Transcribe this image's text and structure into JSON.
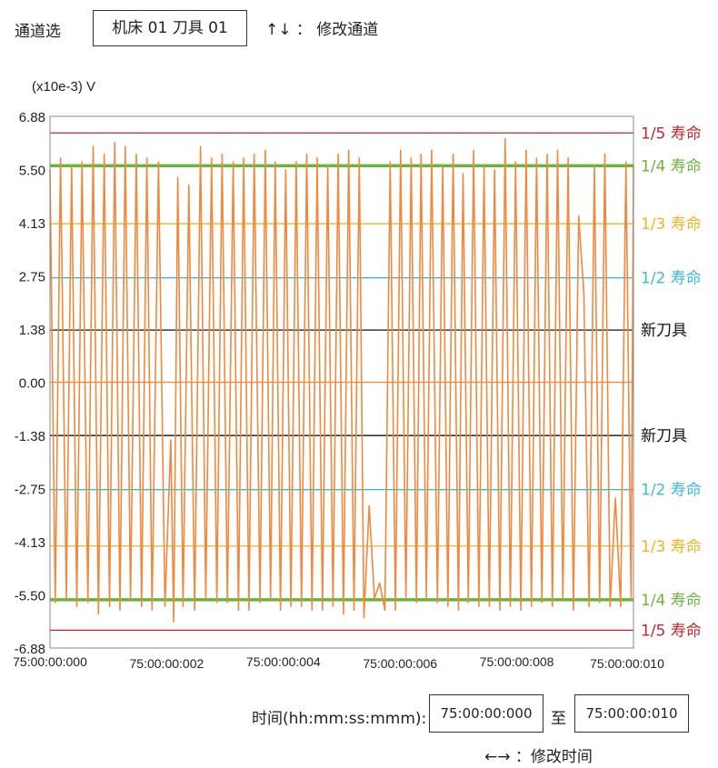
{
  "header": {
    "channel_label": "通道选",
    "channel_value": "机床 01 刀具 01",
    "channel_hint": "↑↓ ： 修改通道"
  },
  "colors": {
    "signal": "#f0883e",
    "fifth_life": "#c0282e",
    "quarter_life": "#6cb33e",
    "third_life": "#f2b320",
    "half_life": "#3cb8d8",
    "new_tool": "#111111",
    "zero": "#f0883e",
    "frame": "#888888"
  },
  "chart_data": {
    "type": "line",
    "ylabel": "(x10e-3) V",
    "ylim": [
      -6.88,
      6.88
    ],
    "yticks": [
      "6.88",
      "5.50",
      "4.13",
      "2.75",
      "1.38",
      "0.00",
      "-1.38",
      "-2.75",
      "-4.13",
      "-5.50",
      "-6.88"
    ],
    "ytick_values": [
      6.88,
      5.5,
      4.13,
      2.75,
      1.38,
      0.0,
      -1.38,
      -2.75,
      -4.13,
      -5.5,
      -6.88
    ],
    "xlim": [
      0,
      0.01
    ],
    "xticks": [
      "75:00:00:000",
      "75:00:00:002",
      "75:00:00:004",
      "75:00:00:006",
      "75:00:00:008",
      "75:00:00:010"
    ],
    "xtick_values": [
      0,
      0.002,
      0.004,
      0.006,
      0.008,
      0.01
    ],
    "thresholds": [
      {
        "label": "1/5 寿命",
        "value": 6.45,
        "color_key": "fifth_life",
        "weight": "thin"
      },
      {
        "label": "1/4 寿命",
        "value": 5.6,
        "color_key": "quarter_life",
        "weight": "thick"
      },
      {
        "label": "1/3 寿命",
        "value": 4.1,
        "color_key": "third_life",
        "weight": "thin"
      },
      {
        "label": "1/2 寿命",
        "value": 2.7,
        "color_key": "half_life",
        "weight": "thin"
      },
      {
        "label": "新刀具",
        "value": 1.35,
        "color_key": "new_tool",
        "weight": "thin"
      },
      {
        "label": "",
        "value": 0.0,
        "color_key": "zero",
        "weight": "thin"
      },
      {
        "label": "新刀具",
        "value": -1.38,
        "color_key": "new_tool",
        "weight": "thin"
      },
      {
        "label": "1/2 寿命",
        "value": -2.78,
        "color_key": "half_life",
        "weight": "thin"
      },
      {
        "label": "1/3 寿命",
        "value": -4.24,
        "color_key": "third_life",
        "weight": "thin"
      },
      {
        "label": "1/4 寿命",
        "value": -5.63,
        "color_key": "quarter_life",
        "weight": "thick"
      },
      {
        "label": "1/5 寿命",
        "value": -6.42,
        "color_key": "fifth_life",
        "weight": "thin"
      }
    ],
    "series": [
      {
        "color_key": "signal",
        "x": [
          0,
          9e-05,
          0.00018,
          0.00028,
          0.00037,
          0.00046,
          0.00055,
          0.00065,
          0.00074,
          0.00083,
          0.00093,
          0.00102,
          0.00111,
          0.0012,
          0.00129,
          0.00138,
          0.00148,
          0.00157,
          0.00166,
          0.00175,
          0.00186,
          0.00197,
          0.00207,
          0.00212,
          0.00219,
          0.00228,
          0.00238,
          0.00248,
          0.00258,
          0.00267,
          0.00277,
          0.00286,
          0.00295,
          0.00304,
          0.00314,
          0.00323,
          0.00332,
          0.00341,
          0.0035,
          0.0036,
          0.00369,
          0.00378,
          0.00386,
          0.00395,
          0.00404,
          0.00413,
          0.00422,
          0.00431,
          0.0044,
          0.00449,
          0.00458,
          0.00467,
          0.00476,
          0.00485,
          0.00494,
          0.00503,
          0.00512,
          0.00521,
          0.0053,
          0.00538,
          0.00547,
          0.00556,
          0.00565,
          0.00574,
          0.00583,
          0.00592,
          0.00601,
          0.0061,
          0.00619,
          0.00628,
          0.00636,
          0.00645,
          0.00654,
          0.00664,
          0.00673,
          0.00682,
          0.00691,
          0.007,
          0.00708,
          0.00717,
          0.00726,
          0.00735,
          0.00744,
          0.00753,
          0.00762,
          0.00771,
          0.0078,
          0.00789,
          0.00798,
          0.00807,
          0.00816,
          0.00825,
          0.00834,
          0.00843,
          0.00852,
          0.00861,
          0.0087,
          0.00879,
          0.00888,
          0.00897,
          0.00906,
          0.00915,
          0.00924,
          0.00933,
          0.00942,
          0.00951,
          0.0096,
          0.00969,
          0.00978,
          0.00987,
          0.00996,
          0.01
        ],
        "values": [
          5.5,
          -5.7,
          5.8,
          -5.6,
          5.6,
          -5.8,
          5.7,
          -5.7,
          6.1,
          -6.0,
          5.9,
          -5.8,
          6.2,
          -5.9,
          6.1,
          -5.6,
          5.9,
          -5.8,
          5.8,
          -5.9,
          5.7,
          -5.8,
          -1.5,
          -6.2,
          5.3,
          -5.8,
          5.1,
          -5.9,
          6.1,
          -5.6,
          5.8,
          -5.7,
          5.9,
          -5.7,
          5.7,
          -5.9,
          5.8,
          -5.9,
          5.9,
          -5.7,
          6.0,
          -5.6,
          5.7,
          -5.9,
          5.5,
          -5.8,
          5.7,
          -5.8,
          5.9,
          -5.9,
          5.8,
          -5.9,
          5.6,
          -5.8,
          5.9,
          -6.0,
          6.0,
          -5.9,
          5.8,
          -6.1,
          -3.2,
          -5.6,
          -5.2,
          -5.9,
          5.7,
          -5.9,
          6.0,
          -5.6,
          5.8,
          -5.7,
          5.9,
          -5.6,
          6.0,
          -5.7,
          5.6,
          -5.8,
          5.9,
          -5.9,
          5.4,
          -5.7,
          6.0,
          -5.8,
          5.6,
          -5.8,
          5.5,
          -5.9,
          6.3,
          -5.8,
          5.7,
          -5.9,
          6.0,
          -5.8,
          5.8,
          -5.7,
          5.9,
          -5.8,
          6.0,
          -5.6,
          5.8,
          -5.9,
          4.3,
          2.3,
          -5.8,
          5.6,
          -5.7,
          5.9,
          -5.8,
          -3.0,
          -5.8,
          5.7,
          -5.6,
          5.6
        ]
      }
    ]
  },
  "footer": {
    "time_label": "时间(hh:mm:ss:mmm):",
    "time_start": "75:00:00:000",
    "to_label": "至",
    "time_end": "75:00:00:010",
    "time_hint": "←→ ：修改时间"
  }
}
